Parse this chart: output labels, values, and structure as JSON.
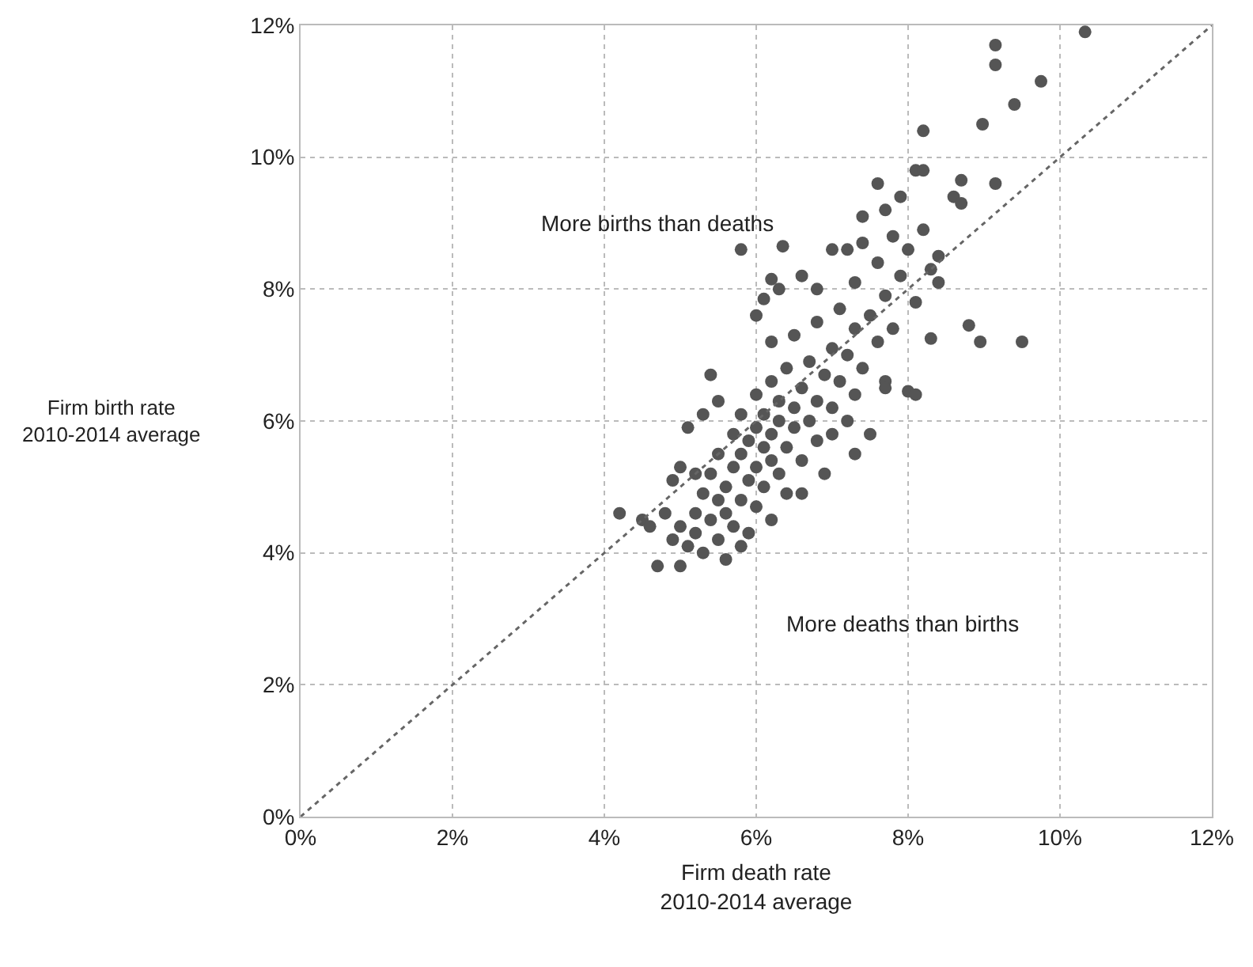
{
  "chart_data": {
    "type": "scatter",
    "xlabel": "Firm death rate\n2010-2014 average",
    "ylabel": "Firm birth rate\n2010-2014 average",
    "annotations": [
      "More births than deaths",
      "More deaths than births"
    ],
    "xlim": [
      0,
      12
    ],
    "ylim": [
      0,
      12
    ],
    "xticks": [
      {
        "value": 0,
        "label": "0%"
      },
      {
        "value": 2,
        "label": "2%"
      },
      {
        "value": 4,
        "label": "4%"
      },
      {
        "value": 6,
        "label": "6%"
      },
      {
        "value": 8,
        "label": "8%"
      },
      {
        "value": 10,
        "label": "10%"
      },
      {
        "value": 12,
        "label": "12%"
      }
    ],
    "yticks": [
      {
        "value": 0,
        "label": "0%"
      },
      {
        "value": 2,
        "label": "2%"
      },
      {
        "value": 4,
        "label": "4%"
      },
      {
        "value": 6,
        "label": "6%"
      },
      {
        "value": 8,
        "label": "8%"
      },
      {
        "value": 10,
        "label": "10%"
      },
      {
        "value": 12,
        "label": "12%"
      }
    ],
    "grid": true,
    "marker": "circle",
    "series": [
      {
        "type": "scatter",
        "color": "#555555",
        "x": [
          4.2,
          4.5,
          4.6,
          4.7,
          5.0,
          4.8,
          4.9,
          5.0,
          5.1,
          5.2,
          5.2,
          5.3,
          5.3,
          5.4,
          5.4,
          5.5,
          5.5,
          5.5,
          5.6,
          5.6,
          5.7,
          5.7,
          5.7,
          5.8,
          5.8,
          5.8,
          5.9,
          5.9,
          5.9,
          6.0,
          6.0,
          6.0,
          6.0,
          6.1,
          6.1,
          6.1,
          6.2,
          6.2,
          6.2,
          6.2,
          6.3,
          6.3,
          6.3,
          6.4,
          6.4,
          6.4,
          6.5,
          6.5,
          6.5,
          6.6,
          6.6,
          6.7,
          6.7,
          6.8,
          6.8,
          6.8,
          6.9,
          7.0,
          7.0,
          7.0,
          7.1,
          7.1,
          7.2,
          7.2,
          7.3,
          7.3,
          7.3,
          7.4,
          7.5,
          7.5,
          7.6,
          7.6,
          7.7,
          7.7,
          7.8,
          7.8,
          7.9,
          7.9,
          8.0,
          8.1,
          8.1,
          8.2,
          8.2,
          8.3,
          8.4,
          8.4,
          8.6,
          8.7,
          8.7,
          9.15,
          8.2,
          8.98,
          9.4,
          9.75,
          9.15,
          9.15,
          10.33,
          8.3,
          8.8,
          8.95,
          9.5,
          8.0,
          8.1,
          7.7,
          5.4,
          5.3,
          5.1,
          5.2,
          5.0,
          4.9,
          6.3,
          6.6,
          6.0,
          6.2,
          5.5,
          6.8,
          7.0,
          7.2,
          7.4,
          7.6,
          7.3,
          6.6,
          5.6,
          5.8,
          6.9,
          7.4,
          7.7,
          5.8,
          6.35,
          6.2,
          6.1
        ],
        "values": [
          4.6,
          4.5,
          4.4,
          3.8,
          3.8,
          4.6,
          4.2,
          4.4,
          4.1,
          4.3,
          4.6,
          4.0,
          4.9,
          4.5,
          5.2,
          4.2,
          4.8,
          5.5,
          4.6,
          5.0,
          4.4,
          5.3,
          5.8,
          4.8,
          5.5,
          6.1,
          4.3,
          5.1,
          5.7,
          4.7,
          5.3,
          5.9,
          6.4,
          5.0,
          5.6,
          6.1,
          4.5,
          5.4,
          5.8,
          6.6,
          5.2,
          6.0,
          6.3,
          4.9,
          5.6,
          6.8,
          5.9,
          6.2,
          7.3,
          5.4,
          6.5,
          6.0,
          6.9,
          5.7,
          6.3,
          7.5,
          6.7,
          5.8,
          6.2,
          7.1,
          6.6,
          7.7,
          6.0,
          7.0,
          6.4,
          7.4,
          8.1,
          6.8,
          7.6,
          5.8,
          7.2,
          8.4,
          6.6,
          7.9,
          8.8,
          7.4,
          8.2,
          9.4,
          8.6,
          7.8,
          9.8,
          8.9,
          9.8,
          8.3,
          8.1,
          8.5,
          9.4,
          9.3,
          9.65,
          9.6,
          10.4,
          10.5,
          10.8,
          11.15,
          11.4,
          11.7,
          11.9,
          7.25,
          7.45,
          7.2,
          7.2,
          6.45,
          6.4,
          6.5,
          6.7,
          6.1,
          5.9,
          5.2,
          5.3,
          5.1,
          8.0,
          8.2,
          7.6,
          7.2,
          6.3,
          8.0,
          8.6,
          8.6,
          9.1,
          9.6,
          5.5,
          4.9,
          3.9,
          4.1,
          5.2,
          8.7,
          9.2,
          8.6,
          8.65,
          8.15,
          7.85
        ]
      },
      {
        "type": "line",
        "color": "#666666",
        "line_style": "dotted",
        "marker": "none",
        "x": [
          0,
          12
        ],
        "values": [
          0,
          12
        ]
      }
    ]
  }
}
